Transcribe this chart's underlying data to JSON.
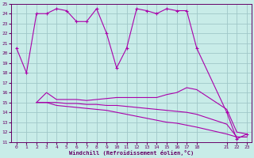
{
  "xlabel": "Windchill (Refroidissement éolien,°C)",
  "bg_color": "#c8ece8",
  "grid_color": "#a0c8c8",
  "line_color": "#aa00aa",
  "xlim": [
    -0.5,
    23.5
  ],
  "ylim": [
    11,
    25
  ],
  "yticks": [
    11,
    12,
    13,
    14,
    15,
    16,
    17,
    18,
    19,
    20,
    21,
    22,
    23,
    24,
    25
  ],
  "xtick_positions": [
    0,
    1,
    2,
    3,
    4,
    5,
    6,
    7,
    8,
    9,
    10,
    11,
    12,
    13,
    14,
    15,
    16,
    17,
    18,
    21,
    22,
    23
  ],
  "xtick_labels": [
    "0",
    "1",
    "2",
    "3",
    "4",
    "5",
    "6",
    "7",
    "8",
    "9",
    "10",
    "11",
    "12",
    "13",
    "14",
    "15",
    "16",
    "17",
    "18",
    "21",
    "22",
    "23"
  ],
  "s1_x": [
    0,
    1,
    2,
    3,
    4,
    5,
    6,
    7,
    8,
    9,
    10,
    11,
    12,
    13,
    14,
    15,
    16,
    17,
    18,
    21,
    22,
    23
  ],
  "s1_y": [
    20.5,
    18.0,
    24.0,
    24.0,
    24.5,
    24.3,
    23.2,
    23.2,
    24.5,
    22.0,
    18.5,
    20.5,
    24.5,
    24.3,
    24.0,
    24.5,
    24.3,
    24.3,
    20.5,
    14.0,
    11.3,
    11.8
  ],
  "s2_x": [
    2,
    3,
    4,
    5,
    6,
    7,
    8,
    9,
    10,
    11,
    12,
    13,
    14,
    15,
    16,
    17,
    18,
    21,
    22,
    23
  ],
  "s2_y": [
    15.0,
    16.0,
    15.3,
    15.3,
    15.3,
    15.2,
    15.3,
    15.4,
    15.5,
    15.5,
    15.5,
    15.5,
    15.5,
    15.8,
    16.0,
    16.5,
    16.3,
    14.3,
    12.0,
    11.8
  ],
  "s3_x": [
    2,
    3,
    4,
    5,
    6,
    7,
    8,
    9,
    10,
    11,
    12,
    13,
    14,
    15,
    16,
    17,
    18,
    21,
    22,
    23
  ],
  "s3_y": [
    15.0,
    15.0,
    15.0,
    14.9,
    14.9,
    14.8,
    14.8,
    14.7,
    14.7,
    14.6,
    14.5,
    14.4,
    14.3,
    14.2,
    14.1,
    14.0,
    13.8,
    12.8,
    11.5,
    11.5
  ],
  "s4_x": [
    2,
    3,
    4,
    5,
    6,
    7,
    8,
    9,
    10,
    11,
    12,
    13,
    14,
    15,
    16,
    17,
    18,
    21,
    22,
    23
  ],
  "s4_y": [
    15.0,
    15.0,
    14.7,
    14.6,
    14.5,
    14.4,
    14.3,
    14.2,
    14.0,
    13.8,
    13.6,
    13.4,
    13.2,
    13.0,
    12.9,
    12.7,
    12.5,
    11.8,
    11.5,
    11.5
  ]
}
